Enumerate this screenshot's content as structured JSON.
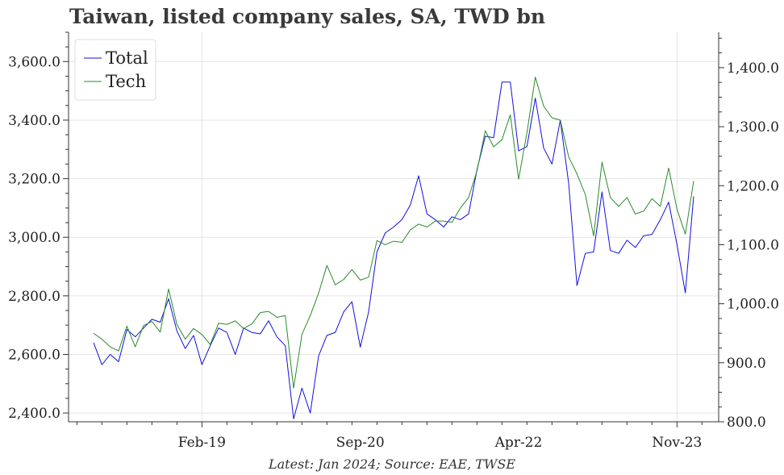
{
  "chart_data": {
    "type": "line",
    "title": "Taiwan, listed company sales, SA, TWD bn",
    "footnote": "Latest: Jan 2024; Source: EAE, TWSE",
    "x_tick_labels": [
      "Feb-19",
      "Sep-20",
      "Apr-22",
      "Nov-23"
    ],
    "x_range": [
      "2017-10",
      "2024-04"
    ],
    "left_axis": {
      "range": [
        2370,
        3700
      ],
      "ticks": [
        2400,
        2600,
        2800,
        3000,
        3200,
        3400,
        3600
      ],
      "tick_labels": [
        "2,400.0",
        "2,600.0",
        "2,800.0",
        "3,000.0",
        "3,200.0",
        "3,400.0",
        "3,600.0"
      ]
    },
    "right_axis": {
      "range": [
        800,
        1460
      ],
      "ticks": [
        800,
        900,
        1000,
        1100,
        1200,
        1300,
        1400
      ],
      "tick_labels": [
        "800.0",
        "900.0",
        "1,000.0",
        "1,100.0",
        "1,200.0",
        "1,300.0",
        "1,400.0"
      ]
    },
    "grid": true,
    "legend": {
      "placement": "top-left"
    },
    "dates": [
      "2018-01",
      "2018-02",
      "2018-03",
      "2018-04",
      "2018-05",
      "2018-06",
      "2018-07",
      "2018-08",
      "2018-09",
      "2018-10",
      "2018-11",
      "2018-12",
      "2019-01",
      "2019-02",
      "2019-03",
      "2019-04",
      "2019-05",
      "2019-06",
      "2019-07",
      "2019-08",
      "2019-09",
      "2019-10",
      "2019-11",
      "2019-12",
      "2020-01",
      "2020-02",
      "2020-03",
      "2020-04",
      "2020-05",
      "2020-06",
      "2020-07",
      "2020-08",
      "2020-09",
      "2020-10",
      "2020-11",
      "2020-12",
      "2021-01",
      "2021-02",
      "2021-03",
      "2021-04",
      "2021-05",
      "2021-06",
      "2021-07",
      "2021-08",
      "2021-09",
      "2021-10",
      "2021-11",
      "2021-12",
      "2022-01",
      "2022-02",
      "2022-03",
      "2022-04",
      "2022-05",
      "2022-06",
      "2022-07",
      "2022-08",
      "2022-09",
      "2022-10",
      "2022-11",
      "2022-12",
      "2023-01",
      "2023-02",
      "2023-03",
      "2023-04",
      "2023-05",
      "2023-06",
      "2023-07",
      "2023-08",
      "2023-09",
      "2023-10",
      "2023-11",
      "2023-12",
      "2024-01"
    ],
    "series": [
      {
        "name": "Total",
        "axis": "left",
        "color": "#1010e0",
        "values": [
          2640,
          2565,
          2600,
          2575,
          2685,
          2660,
          2690,
          2720,
          2710,
          2790,
          2680,
          2620,
          2665,
          2565,
          2630,
          2690,
          2675,
          2600,
          2690,
          2675,
          2670,
          2715,
          2660,
          2630,
          2380,
          2485,
          2400,
          2595,
          2665,
          2675,
          2745,
          2780,
          2625,
          2745,
          2950,
          3015,
          3035,
          3060,
          3110,
          3210,
          3080,
          3060,
          3035,
          3070,
          3060,
          3080,
          3230,
          3345,
          3340,
          3530,
          3530,
          3295,
          3310,
          3475,
          3305,
          3250,
          3400,
          3185,
          2835,
          2945,
          2950,
          3155,
          2955,
          2945,
          2990,
          2965,
          3005,
          3010,
          3060,
          3120,
          2975,
          2810,
          3140
        ]
      },
      {
        "name": "Tech",
        "axis": "right",
        "color": "#2a8a2a",
        "values": [
          950,
          940,
          927,
          920,
          962,
          927,
          963,
          970,
          952,
          1025,
          965,
          940,
          958,
          948,
          931,
          967,
          965,
          971,
          958,
          966,
          985,
          987,
          977,
          980,
          857,
          948,
          980,
          1018,
          1065,
          1032,
          1041,
          1058,
          1040,
          1045,
          1107,
          1100,
          1106,
          1104,
          1125,
          1135,
          1130,
          1140,
          1140,
          1138,
          1162,
          1180,
          1225,
          1293,
          1266,
          1278,
          1320,
          1211,
          1290,
          1384,
          1335,
          1315,
          1311,
          1249,
          1220,
          1185,
          1115,
          1240,
          1180,
          1165,
          1180,
          1152,
          1157,
          1178,
          1165,
          1230,
          1160,
          1118,
          1208
        ]
      }
    ]
  }
}
